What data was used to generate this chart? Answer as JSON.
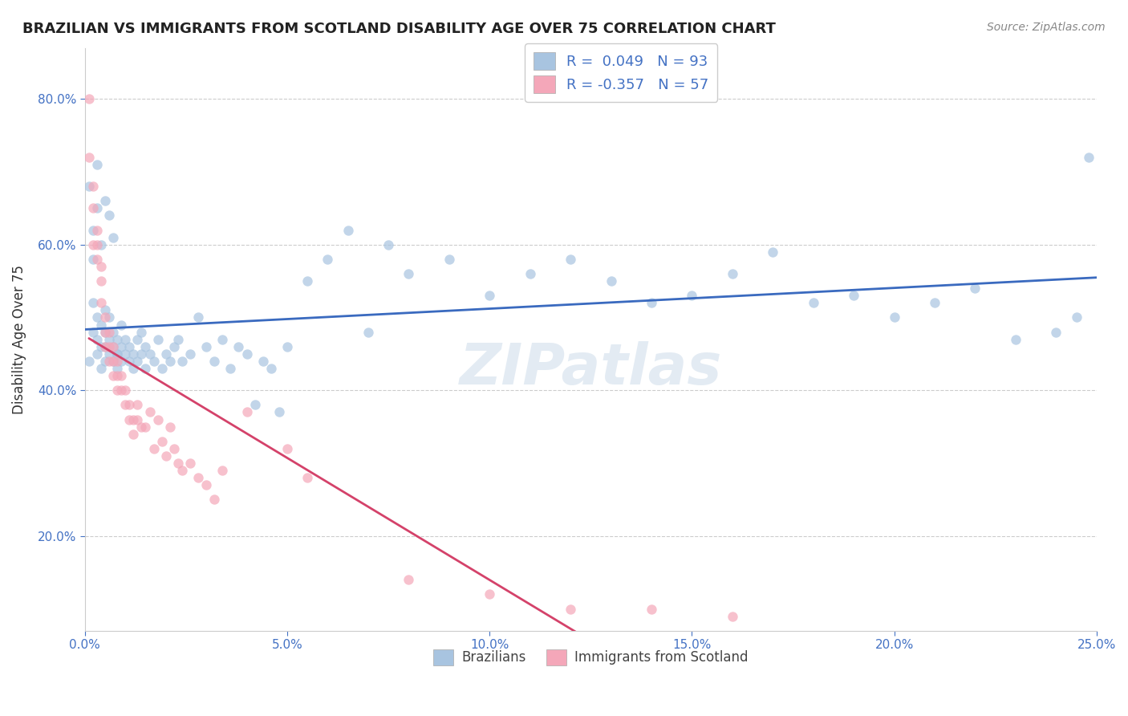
{
  "title": "BRAZILIAN VS IMMIGRANTS FROM SCOTLAND DISABILITY AGE OVER 75 CORRELATION CHART",
  "source": "Source: ZipAtlas.com",
  "xlabel": "",
  "ylabel": "Disability Age Over 75",
  "xlim": [
    0.0,
    0.25
  ],
  "ylim": [
    0.07,
    0.87
  ],
  "xticks": [
    0.0,
    0.05,
    0.1,
    0.15,
    0.2,
    0.25
  ],
  "xticklabels": [
    "0.0%",
    "5.0%",
    "10.0%",
    "15.0%",
    "20.0%",
    "25.0%"
  ],
  "yticks": [
    0.2,
    0.4,
    0.6,
    0.8
  ],
  "yticklabels": [
    "20.0%",
    "40.0%",
    "60.0%",
    "80.0%"
  ],
  "brazil_R": 0.049,
  "brazil_N": 93,
  "scotland_R": -0.357,
  "scotland_N": 57,
  "brazil_color": "#a8c4e0",
  "scotland_color": "#f4a7b9",
  "brazil_line_color": "#3a6abf",
  "scotland_line_color": "#d4426a",
  "brazil_x": [
    0.001,
    0.002,
    0.002,
    0.003,
    0.003,
    0.003,
    0.004,
    0.004,
    0.004,
    0.005,
    0.005,
    0.005,
    0.005,
    0.006,
    0.006,
    0.006,
    0.007,
    0.007,
    0.007,
    0.008,
    0.008,
    0.008,
    0.009,
    0.009,
    0.009,
    0.01,
    0.01,
    0.011,
    0.011,
    0.012,
    0.012,
    0.013,
    0.013,
    0.014,
    0.014,
    0.015,
    0.015,
    0.016,
    0.017,
    0.018,
    0.019,
    0.02,
    0.021,
    0.022,
    0.023,
    0.024,
    0.026,
    0.028,
    0.03,
    0.032,
    0.034,
    0.036,
    0.038,
    0.04,
    0.042,
    0.044,
    0.046,
    0.048,
    0.05,
    0.055,
    0.06,
    0.065,
    0.07,
    0.075,
    0.08,
    0.09,
    0.1,
    0.11,
    0.12,
    0.13,
    0.14,
    0.15,
    0.16,
    0.17,
    0.18,
    0.19,
    0.2,
    0.21,
    0.22,
    0.23,
    0.24,
    0.245,
    0.248,
    0.001,
    0.002,
    0.002,
    0.003,
    0.003,
    0.004,
    0.005,
    0.006,
    0.007,
    0.008
  ],
  "brazil_y": [
    0.44,
    0.48,
    0.52,
    0.45,
    0.47,
    0.5,
    0.43,
    0.46,
    0.49,
    0.44,
    0.46,
    0.48,
    0.51,
    0.45,
    0.47,
    0.5,
    0.44,
    0.46,
    0.48,
    0.43,
    0.45,
    0.47,
    0.44,
    0.46,
    0.49,
    0.45,
    0.47,
    0.44,
    0.46,
    0.43,
    0.45,
    0.44,
    0.47,
    0.45,
    0.48,
    0.43,
    0.46,
    0.45,
    0.44,
    0.47,
    0.43,
    0.45,
    0.44,
    0.46,
    0.47,
    0.44,
    0.45,
    0.5,
    0.46,
    0.44,
    0.47,
    0.43,
    0.46,
    0.45,
    0.38,
    0.44,
    0.43,
    0.37,
    0.46,
    0.55,
    0.58,
    0.62,
    0.48,
    0.6,
    0.56,
    0.58,
    0.53,
    0.56,
    0.58,
    0.55,
    0.52,
    0.53,
    0.56,
    0.59,
    0.52,
    0.53,
    0.5,
    0.52,
    0.54,
    0.47,
    0.48,
    0.5,
    0.72,
    0.68,
    0.62,
    0.58,
    0.71,
    0.65,
    0.6,
    0.66,
    0.64,
    0.61,
    0.45
  ],
  "scotland_x": [
    0.001,
    0.001,
    0.002,
    0.002,
    0.002,
    0.003,
    0.003,
    0.003,
    0.004,
    0.004,
    0.004,
    0.005,
    0.005,
    0.005,
    0.006,
    0.006,
    0.006,
    0.007,
    0.007,
    0.007,
    0.008,
    0.008,
    0.008,
    0.009,
    0.009,
    0.01,
    0.01,
    0.011,
    0.011,
    0.012,
    0.012,
    0.013,
    0.013,
    0.014,
    0.015,
    0.016,
    0.017,
    0.018,
    0.019,
    0.02,
    0.021,
    0.022,
    0.023,
    0.024,
    0.026,
    0.028,
    0.03,
    0.032,
    0.034,
    0.04,
    0.05,
    0.055,
    0.08,
    0.1,
    0.12,
    0.14,
    0.16
  ],
  "scotland_y": [
    0.8,
    0.72,
    0.68,
    0.65,
    0.6,
    0.62,
    0.6,
    0.58,
    0.57,
    0.55,
    0.52,
    0.5,
    0.48,
    0.46,
    0.48,
    0.46,
    0.44,
    0.46,
    0.44,
    0.42,
    0.44,
    0.42,
    0.4,
    0.42,
    0.4,
    0.4,
    0.38,
    0.38,
    0.36,
    0.36,
    0.34,
    0.38,
    0.36,
    0.35,
    0.35,
    0.37,
    0.32,
    0.36,
    0.33,
    0.31,
    0.35,
    0.32,
    0.3,
    0.29,
    0.3,
    0.28,
    0.27,
    0.25,
    0.29,
    0.37,
    0.32,
    0.28,
    0.14,
    0.12,
    0.1,
    0.1,
    0.09
  ],
  "background_color": "#ffffff",
  "grid_color": "#cccccc",
  "watermark_text": "ZIPatlas",
  "watermark_color": "#c8d8e8"
}
